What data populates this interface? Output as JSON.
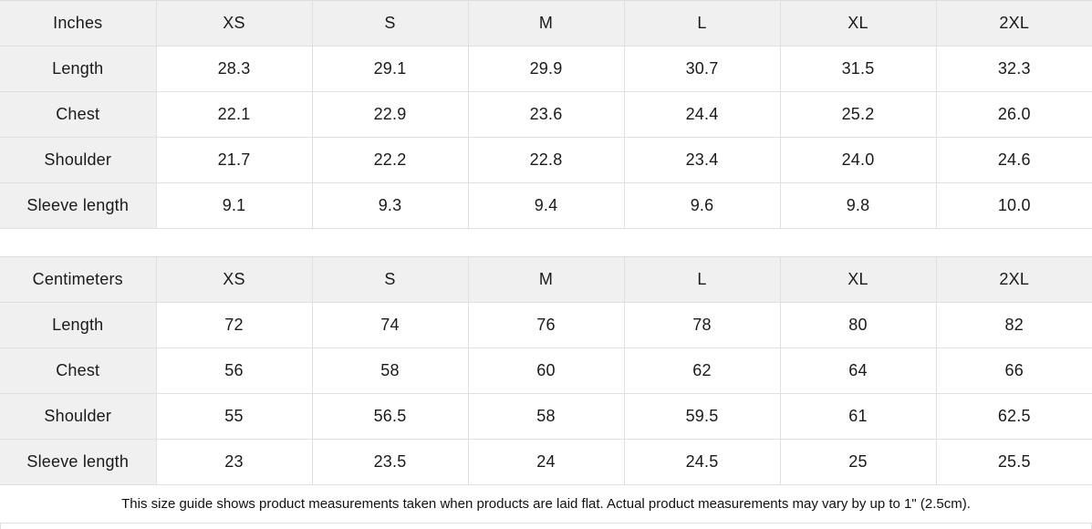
{
  "page": {
    "background": "#ffffff",
    "header_fill": "#f0f0f1",
    "border_color": "#e0e0e0",
    "text_color": "#1a1a1a"
  },
  "tables": [
    {
      "unit_label": "Inches",
      "sizes": [
        "XS",
        "S",
        "M",
        "L",
        "XL",
        "2XL"
      ],
      "rows": [
        {
          "label": "Length",
          "values": [
            "28.3",
            "29.1",
            "29.9",
            "30.7",
            "31.5",
            "32.3"
          ]
        },
        {
          "label": "Chest",
          "values": [
            "22.1",
            "22.9",
            "23.6",
            "24.4",
            "25.2",
            "26.0"
          ]
        },
        {
          "label": "Shoulder",
          "values": [
            "21.7",
            "22.2",
            "22.8",
            "23.4",
            "24.0",
            "24.6"
          ]
        },
        {
          "label": "Sleeve length",
          "values": [
            "9.1",
            "9.3",
            "9.4",
            "9.6",
            "9.8",
            "10.0"
          ]
        }
      ]
    },
    {
      "unit_label": "Centimeters",
      "sizes": [
        "XS",
        "S",
        "M",
        "L",
        "XL",
        "2XL"
      ],
      "rows": [
        {
          "label": "Length",
          "values": [
            "72",
            "74",
            "76",
            "78",
            "80",
            "82"
          ]
        },
        {
          "label": "Chest",
          "values": [
            "56",
            "58",
            "60",
            "62",
            "64",
            "66"
          ]
        },
        {
          "label": "Shoulder",
          "values": [
            "55",
            "56.5",
            "58",
            "59.5",
            "61",
            "62.5"
          ]
        },
        {
          "label": "Sleeve length",
          "values": [
            "23",
            "23.5",
            "24",
            "24.5",
            "25",
            "25.5"
          ]
        }
      ]
    }
  ],
  "footer": {
    "note": "This size guide shows product measurements taken when products are laid flat.  Actual product measurements may vary by up to 1\" (2.5cm)."
  }
}
